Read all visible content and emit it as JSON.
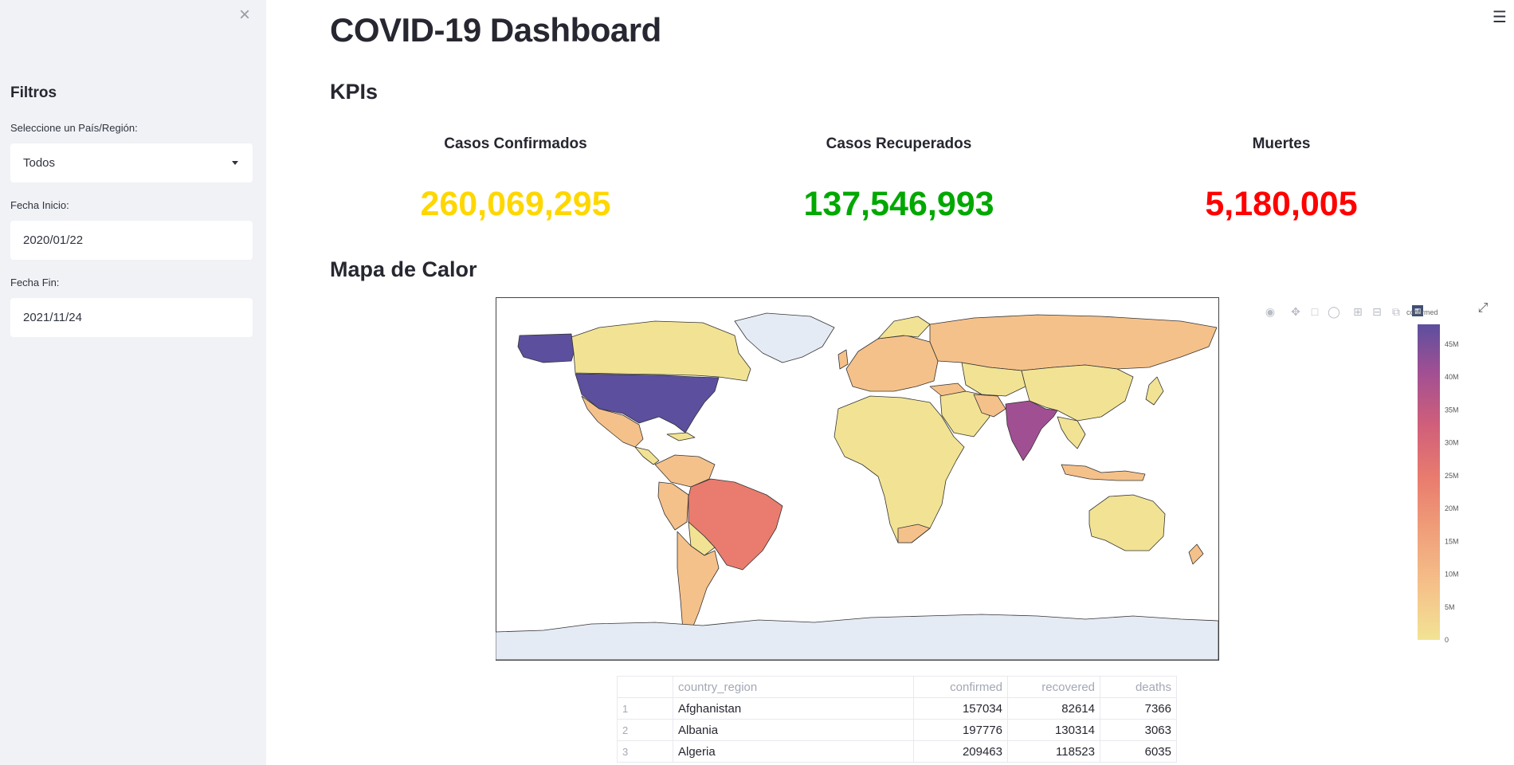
{
  "sidebar": {
    "title": "Filtros",
    "country_label": "Seleccione un País/Región:",
    "country_value": "Todos",
    "start_label": "Fecha Inicio:",
    "start_value": "2020/01/22",
    "end_label": "Fecha Fin:",
    "end_value": "2021/11/24",
    "close_icon": "×"
  },
  "page": {
    "title": "COVID-19 Dashboard",
    "kpis_heading": "KPIs",
    "map_heading": "Mapa de Calor",
    "menu_icon": "☰"
  },
  "kpis": [
    {
      "label": "Casos Confirmados",
      "value": "260,069,295",
      "color": "#FFD700"
    },
    {
      "label": "Casos Recuperados",
      "value": "137,546,993",
      "color": "#00A800"
    },
    {
      "label": "Muertes",
      "value": "5,180,005",
      "color": "#FF0000"
    }
  ],
  "map": {
    "colorbar_title": "confirmed",
    "colorscale": [
      "#F2E394",
      "#F5C18A",
      "#F0A07A",
      "#E97C6E",
      "#D05F7A",
      "#A14F93",
      "#5C4F9E"
    ],
    "colorbar_ticks": [
      "0",
      "5M",
      "10M",
      "15M",
      "20M",
      "25M",
      "30M",
      "35M",
      "40M",
      "45M"
    ],
    "zmax_millions": 48,
    "modebar_icons": [
      "camera-icon",
      "pan-icon",
      "box-select-icon",
      "lasso-icon",
      "zoom-in-icon",
      "zoom-out-icon",
      "autoscale-icon",
      "plotly-logo-icon"
    ]
  },
  "table": {
    "headers": [
      "",
      "country_region",
      "confirmed",
      "recovered",
      "deaths"
    ],
    "rows": [
      [
        "1",
        "Afghanistan",
        "157034",
        "82614",
        "7366"
      ],
      [
        "2",
        "Albania",
        "197776",
        "130314",
        "3063"
      ],
      [
        "3",
        "Algeria",
        "209463",
        "118523",
        "6035"
      ]
    ]
  }
}
